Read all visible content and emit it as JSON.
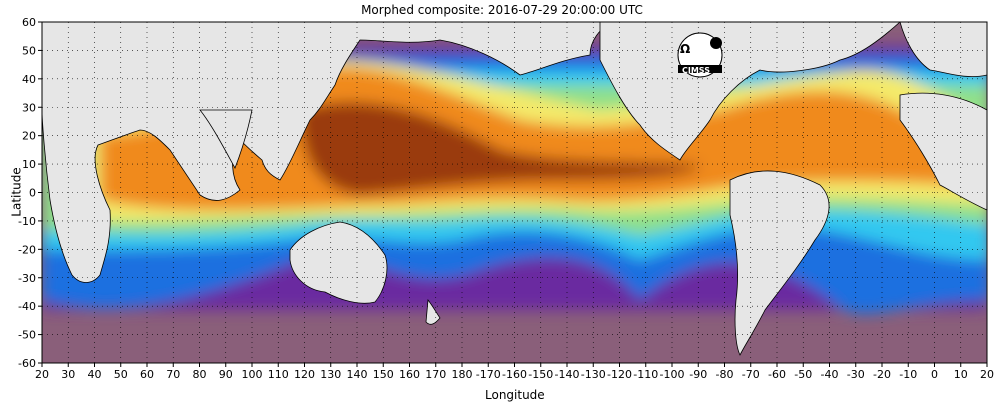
{
  "title": "Morphed composite: 2016-07-29 20:00:00 UTC",
  "xlabel": "Longitude",
  "ylabel": "Latitude",
  "logo_text": "CIMSS",
  "x_ticks": [
    "20",
    "30",
    "40",
    "50",
    "60",
    "70",
    "80",
    "90",
    "100",
    "110",
    "120",
    "130",
    "140",
    "150",
    "160",
    "170",
    "180",
    "-170",
    "-160",
    "-150",
    "-140",
    "-130",
    "-120",
    "-110",
    "-100",
    "-90",
    "-80",
    "-70",
    "-60",
    "-50",
    "-40",
    "-30",
    "-20",
    "-10",
    "0",
    "10",
    "20"
  ],
  "y_ticks": [
    "60",
    "50",
    "40",
    "30",
    "20",
    "10",
    "0",
    "-10",
    "-20",
    "-30",
    "-40",
    "-50",
    "-60"
  ],
  "extent": {
    "lon_start": 20,
    "lon_span": 360,
    "lat_max": 60,
    "lat_min": -60
  },
  "colors": {
    "land": "#e6e6e6",
    "coast": "#000000",
    "dry": "#8a5f7a",
    "purple": "#6a2aa0",
    "blue": "#1f6fe0",
    "cyan": "#33c8f0",
    "green": "#8fe08a",
    "yellow": "#f4ea6a",
    "orange": "#f08a1a",
    "brown": "#9a3a0a"
  }
}
